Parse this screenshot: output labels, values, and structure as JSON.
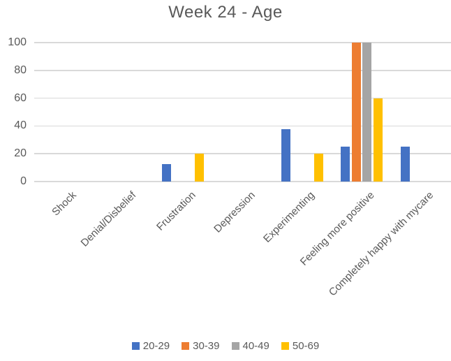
{
  "chart_data": {
    "type": "bar",
    "title": "Week 24 - Age",
    "categories": [
      "Shock",
      "Denial/Disbelief",
      "Frustration",
      "Depression",
      "Experimenting",
      "Feeling more positive",
      "Completely happy with mycare"
    ],
    "series": [
      {
        "name": "20-29",
        "color": "#4472C4",
        "values": [
          0,
          0,
          12.5,
          0,
          37.5,
          25,
          25
        ]
      },
      {
        "name": "30-39",
        "color": "#ED7D31",
        "values": [
          0,
          0,
          0,
          0,
          0,
          100,
          0
        ]
      },
      {
        "name": "40-49",
        "color": "#A5A5A5",
        "values": [
          0,
          0,
          0,
          0,
          0,
          100,
          0
        ]
      },
      {
        "name": "50-69",
        "color": "#FFC000",
        "values": [
          0,
          0,
          20,
          0,
          20,
          60,
          0
        ]
      }
    ],
    "xlabel": "",
    "ylabel": "",
    "ylim": [
      0,
      100
    ],
    "yticks": [
      0,
      20,
      40,
      60,
      80,
      100
    ],
    "grid": true,
    "legend_position": "bottom",
    "text_color": "#595959",
    "gridline_color": "#D9D9D9",
    "background_color": "#FFFFFF"
  }
}
